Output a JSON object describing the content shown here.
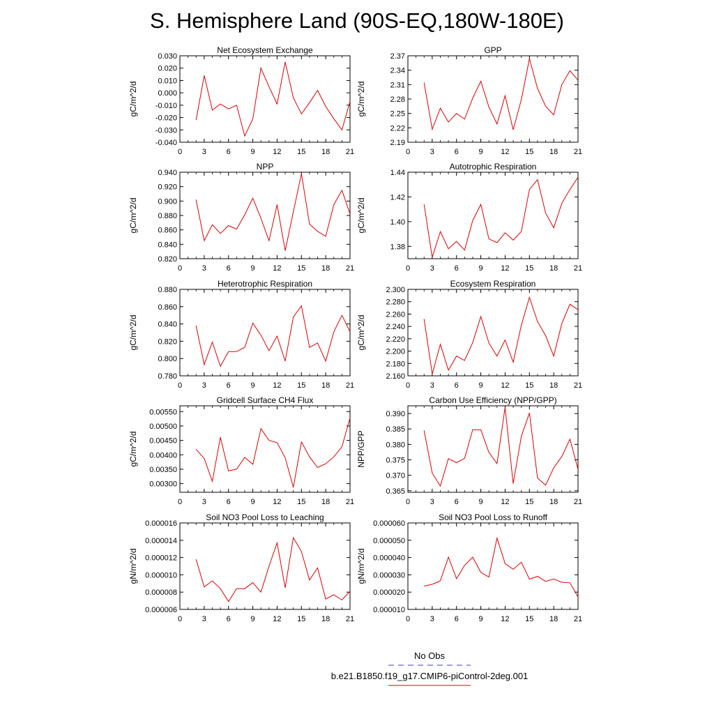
{
  "title": "S. Hemisphere Land (90S-EQ,180W-180E)",
  "legend": {
    "entries": [
      {
        "label": "No Obs",
        "color": "#3b3bd6",
        "style": "dashed"
      },
      {
        "label": "b.e21.B1850.f19_g17.CMIP6-piControl-2deg.001",
        "color": "#e00000",
        "style": "solid"
      }
    ]
  },
  "chart_data": [
    {
      "type": "line",
      "title": "Net Ecosystem Exchange",
      "ylabel": "gC/m^2/d",
      "xlim": [
        0,
        21
      ],
      "ylim": [
        -0.04,
        0.03
      ],
      "xticks": [
        0,
        3,
        6,
        9,
        12,
        15,
        18,
        21
      ],
      "xticklabels": [
        "0",
        "3",
        "6",
        "9",
        "12",
        "15",
        "18",
        "21"
      ],
      "yticks": [
        -0.04,
        -0.03,
        -0.02,
        -0.01,
        0,
        0.01,
        0.02,
        0.03
      ],
      "yticklabels": [
        "-0.040",
        "-0.030",
        "-0.020",
        "-0.010",
        "0.000",
        "0.010",
        "0.020",
        "0.030"
      ],
      "series": [
        {
          "color": "#e00000",
          "x": [
            2,
            3,
            4,
            5,
            6,
            7,
            8,
            9,
            10,
            11,
            12,
            13,
            14,
            15,
            16,
            17,
            18,
            19,
            20,
            21
          ],
          "values": [
            -0.022,
            0.014,
            -0.014,
            -0.009,
            -0.013,
            -0.01,
            -0.035,
            -0.021,
            0.02,
            0.005,
            -0.009,
            0.025,
            -0.004,
            -0.017,
            -0.008,
            0.002,
            -0.011,
            -0.021,
            -0.03,
            -0.007
          ]
        }
      ]
    },
    {
      "type": "line",
      "title": "GPP",
      "ylabel": "gC/m^2/d",
      "xlim": [
        0,
        21
      ],
      "ylim": [
        2.19,
        2.37
      ],
      "xticks": [
        0,
        3,
        6,
        9,
        12,
        15,
        18,
        21
      ],
      "xticklabels": [
        "0",
        "3",
        "6",
        "9",
        "12",
        "15",
        "18",
        "21"
      ],
      "yticks": [
        2.19,
        2.22,
        2.25,
        2.28,
        2.31,
        2.34,
        2.37
      ],
      "yticklabels": [
        "2.19",
        "2.22",
        "2.25",
        "2.28",
        "2.31",
        "2.34",
        "2.37"
      ],
      "series": [
        {
          "color": "#e00000",
          "x": [
            2,
            3,
            4,
            5,
            6,
            7,
            8,
            9,
            10,
            11,
            12,
            13,
            14,
            15,
            16,
            17,
            18,
            19,
            20,
            21
          ],
          "values": [
            2.314,
            2.217,
            2.261,
            2.232,
            2.25,
            2.238,
            2.282,
            2.317,
            2.263,
            2.228,
            2.287,
            2.216,
            2.279,
            2.364,
            2.302,
            2.265,
            2.247,
            2.31,
            2.339,
            2.319
          ]
        }
      ]
    },
    {
      "type": "line",
      "title": "NPP",
      "ylabel": "gC/m^2/d",
      "xlim": [
        0,
        21
      ],
      "ylim": [
        0.82,
        0.94
      ],
      "xticks": [
        0,
        3,
        6,
        9,
        12,
        15,
        18,
        21
      ],
      "xticklabels": [
        "0",
        "3",
        "6",
        "9",
        "12",
        "15",
        "18",
        "21"
      ],
      "yticks": [
        0.82,
        0.84,
        0.86,
        0.88,
        0.9,
        0.92,
        0.94
      ],
      "yticklabels": [
        "0.820",
        "0.840",
        "0.860",
        "0.880",
        "0.900",
        "0.920",
        "0.940"
      ],
      "series": [
        {
          "color": "#e00000",
          "x": [
            2,
            3,
            4,
            5,
            6,
            7,
            8,
            9,
            10,
            11,
            12,
            13,
            14,
            15,
            16,
            17,
            18,
            19,
            20,
            21
          ],
          "values": [
            0.902,
            0.845,
            0.867,
            0.855,
            0.866,
            0.861,
            0.881,
            0.904,
            0.876,
            0.845,
            0.895,
            0.831,
            0.885,
            0.938,
            0.868,
            0.858,
            0.851,
            0.895,
            0.915,
            0.882
          ]
        }
      ]
    },
    {
      "type": "line",
      "title": "Autotrophic Respiration",
      "ylabel": "gC/m^2/d",
      "xlim": [
        0,
        21
      ],
      "ylim": [
        1.37,
        1.44
      ],
      "xticks": [
        0,
        3,
        6,
        9,
        12,
        15,
        18,
        21
      ],
      "xticklabels": [
        "0",
        "3",
        "6",
        "9",
        "12",
        "15",
        "18",
        "21"
      ],
      "yticks": [
        1.38,
        1.4,
        1.42,
        1.44
      ],
      "yticklabels": [
        "1.38",
        "1.40",
        "1.42",
        "1.44"
      ],
      "series": [
        {
          "color": "#e00000",
          "x": [
            2,
            3,
            4,
            5,
            6,
            7,
            8,
            9,
            10,
            11,
            12,
            13,
            14,
            15,
            16,
            17,
            18,
            19,
            20,
            21
          ],
          "values": [
            1.414,
            1.371,
            1.392,
            1.378,
            1.384,
            1.377,
            1.401,
            1.414,
            1.386,
            1.383,
            1.391,
            1.385,
            1.392,
            1.426,
            1.434,
            1.407,
            1.395,
            1.415,
            1.426,
            1.436
          ]
        }
      ]
    },
    {
      "type": "line",
      "title": "Heterotrophic Respiration",
      "ylabel": "gC/m^2/d",
      "xlim": [
        0,
        21
      ],
      "ylim": [
        0.78,
        0.88
      ],
      "xticks": [
        0,
        3,
        6,
        9,
        12,
        15,
        18,
        21
      ],
      "xticklabels": [
        "0",
        "3",
        "6",
        "9",
        "12",
        "15",
        "18",
        "21"
      ],
      "yticks": [
        0.78,
        0.8,
        0.82,
        0.84,
        0.86,
        0.88
      ],
      "yticklabels": [
        "0.780",
        "0.800",
        "0.820",
        "0.840",
        "0.860",
        "0.880"
      ],
      "series": [
        {
          "color": "#e00000",
          "x": [
            2,
            3,
            4,
            5,
            6,
            7,
            8,
            9,
            10,
            11,
            12,
            13,
            14,
            15,
            16,
            17,
            18,
            19,
            20,
            21
          ],
          "values": [
            0.838,
            0.793,
            0.819,
            0.791,
            0.808,
            0.808,
            0.813,
            0.841,
            0.827,
            0.809,
            0.826,
            0.797,
            0.848,
            0.861,
            0.813,
            0.818,
            0.797,
            0.831,
            0.85,
            0.831
          ]
        }
      ]
    },
    {
      "type": "line",
      "title": "Ecosystem Respiration",
      "ylabel": "gC/m^2/d",
      "xlim": [
        0,
        21
      ],
      "ylim": [
        2.16,
        2.3
      ],
      "xticks": [
        0,
        3,
        6,
        9,
        12,
        15,
        18,
        21
      ],
      "xticklabels": [
        "0",
        "3",
        "6",
        "9",
        "12",
        "15",
        "18",
        "21"
      ],
      "yticks": [
        2.16,
        2.18,
        2.2,
        2.22,
        2.24,
        2.26,
        2.28,
        2.3
      ],
      "yticklabels": [
        "2.160",
        "2.180",
        "2.200",
        "2.220",
        "2.240",
        "2.260",
        "2.280",
        "2.300"
      ],
      "series": [
        {
          "color": "#e00000",
          "x": [
            2,
            3,
            4,
            5,
            6,
            7,
            8,
            9,
            10,
            11,
            12,
            13,
            14,
            15,
            16,
            17,
            18,
            19,
            20,
            21
          ],
          "values": [
            2.252,
            2.163,
            2.211,
            2.169,
            2.192,
            2.185,
            2.214,
            2.256,
            2.213,
            2.192,
            2.218,
            2.182,
            2.242,
            2.287,
            2.248,
            2.225,
            2.192,
            2.245,
            2.276,
            2.267
          ]
        }
      ]
    },
    {
      "type": "line",
      "title": "Gridcell Surface CH4 Flux",
      "ylabel": "gC/m^2/d",
      "xlim": [
        0,
        21
      ],
      "ylim": [
        0.0027,
        0.0057
      ],
      "xticks": [
        0,
        3,
        6,
        9,
        12,
        15,
        18,
        21
      ],
      "xticklabels": [
        "0",
        "3",
        "6",
        "9",
        "12",
        "15",
        "18",
        "21"
      ],
      "yticks": [
        0.003,
        0.0035,
        0.004,
        0.0045,
        0.005,
        0.0055
      ],
      "yticklabels": [
        "0.00300",
        "0.00350",
        "0.00400",
        "0.00450",
        "0.00500",
        "0.00550"
      ],
      "series": [
        {
          "color": "#e00000",
          "x": [
            2,
            3,
            4,
            5,
            6,
            7,
            8,
            9,
            10,
            11,
            12,
            13,
            14,
            15,
            16,
            17,
            18,
            19,
            20,
            21
          ],
          "values": [
            0.00419,
            0.00387,
            0.00308,
            0.00461,
            0.00344,
            0.0035,
            0.00391,
            0.00367,
            0.00491,
            0.0045,
            0.00442,
            0.0039,
            0.00287,
            0.00445,
            0.00393,
            0.00356,
            0.00369,
            0.00393,
            0.00428,
            0.00528
          ]
        }
      ]
    },
    {
      "type": "line",
      "title": "Carbon Use Efficiency (NPP/GPP)",
      "ylabel": "NPP/GPP",
      "xlim": [
        0,
        21
      ],
      "ylim": [
        0.3645,
        0.3925
      ],
      "xticks": [
        0,
        3,
        6,
        9,
        12,
        15,
        18,
        21
      ],
      "xticklabels": [
        "0",
        "3",
        "6",
        "9",
        "12",
        "15",
        "18",
        "21"
      ],
      "yticks": [
        0.365,
        0.37,
        0.375,
        0.38,
        0.385,
        0.39
      ],
      "yticklabels": [
        "0.365",
        "0.370",
        "0.375",
        "0.380",
        "0.385",
        "0.390"
      ],
      "series": [
        {
          "color": "#e00000",
          "x": [
            2,
            3,
            4,
            5,
            6,
            7,
            8,
            9,
            10,
            11,
            12,
            13,
            14,
            15,
            16,
            17,
            18,
            19,
            20,
            21
          ],
          "values": [
            0.3845,
            0.3707,
            0.3665,
            0.3754,
            0.3741,
            0.3755,
            0.3848,
            0.3847,
            0.3774,
            0.3738,
            0.392,
            0.3673,
            0.3826,
            0.3902,
            0.3691,
            0.3668,
            0.3724,
            0.3761,
            0.3817,
            0.3719
          ]
        }
      ]
    },
    {
      "type": "line",
      "title": "Soil NO3 Pool Loss to Leaching",
      "ylabel": "gN/m^2/d",
      "xlim": [
        0,
        21
      ],
      "ylim": [
        6e-06,
        1.6e-05
      ],
      "xticks": [
        0,
        3,
        6,
        9,
        12,
        15,
        18,
        21
      ],
      "xticklabels": [
        "0",
        "3",
        "6",
        "9",
        "12",
        "15",
        "18",
        "21"
      ],
      "yticks": [
        6e-06,
        8e-06,
        1e-05,
        1.2e-05,
        1.4e-05,
        1.6e-05
      ],
      "yticklabels": [
        "0.000006",
        "0.000008",
        "0.000010",
        "0.000012",
        "0.000014",
        "0.000016"
      ],
      "series": [
        {
          "color": "#e00000",
          "x": [
            2,
            3,
            4,
            5,
            6,
            7,
            8,
            9,
            10,
            11,
            12,
            13,
            14,
            15,
            16,
            17,
            18,
            19,
            20,
            21
          ],
          "values": [
            1.18e-05,
            8.6e-06,
            9.3e-06,
            8.4e-06,
            6.9e-06,
            8.4e-06,
            8.4e-06,
            9.1e-06,
            8e-06,
            1.1e-05,
            1.37e-05,
            8.5e-06,
            1.43e-05,
            1.27e-05,
            9.4e-06,
            1.08e-05,
            7.2e-06,
            7.7e-06,
            7.1e-06,
            8.1e-06
          ]
        }
      ]
    },
    {
      "type": "line",
      "title": "Soil NO3 Pool Loss to Runoff",
      "ylabel": "gN/m^2/d",
      "xlim": [
        0,
        21
      ],
      "ylim": [
        1e-05,
        6e-05
      ],
      "xticks": [
        0,
        3,
        6,
        9,
        12,
        15,
        18,
        21
      ],
      "xticklabels": [
        "0",
        "3",
        "6",
        "9",
        "12",
        "15",
        "18",
        "21"
      ],
      "yticks": [
        1e-05,
        2e-05,
        3e-05,
        4e-05,
        5e-05,
        6e-05
      ],
      "yticklabels": [
        "0.000010",
        "0.000020",
        "0.000030",
        "0.000040",
        "0.000050",
        "0.000060"
      ],
      "series": [
        {
          "color": "#e00000",
          "x": [
            2,
            3,
            4,
            5,
            6,
            7,
            8,
            9,
            10,
            11,
            12,
            13,
            14,
            15,
            16,
            17,
            18,
            19,
            20,
            21
          ],
          "values": [
            2.35e-05,
            2.45e-05,
            2.65e-05,
            4.02e-05,
            2.78e-05,
            3.55e-05,
            4.02e-05,
            3.14e-05,
            2.87e-05,
            5.13e-05,
            3.65e-05,
            3.32e-05,
            3.73e-05,
            2.75e-05,
            2.91e-05,
            2.62e-05,
            2.76e-05,
            2.57e-05,
            2.54e-05,
            1.72e-05
          ]
        }
      ]
    }
  ]
}
